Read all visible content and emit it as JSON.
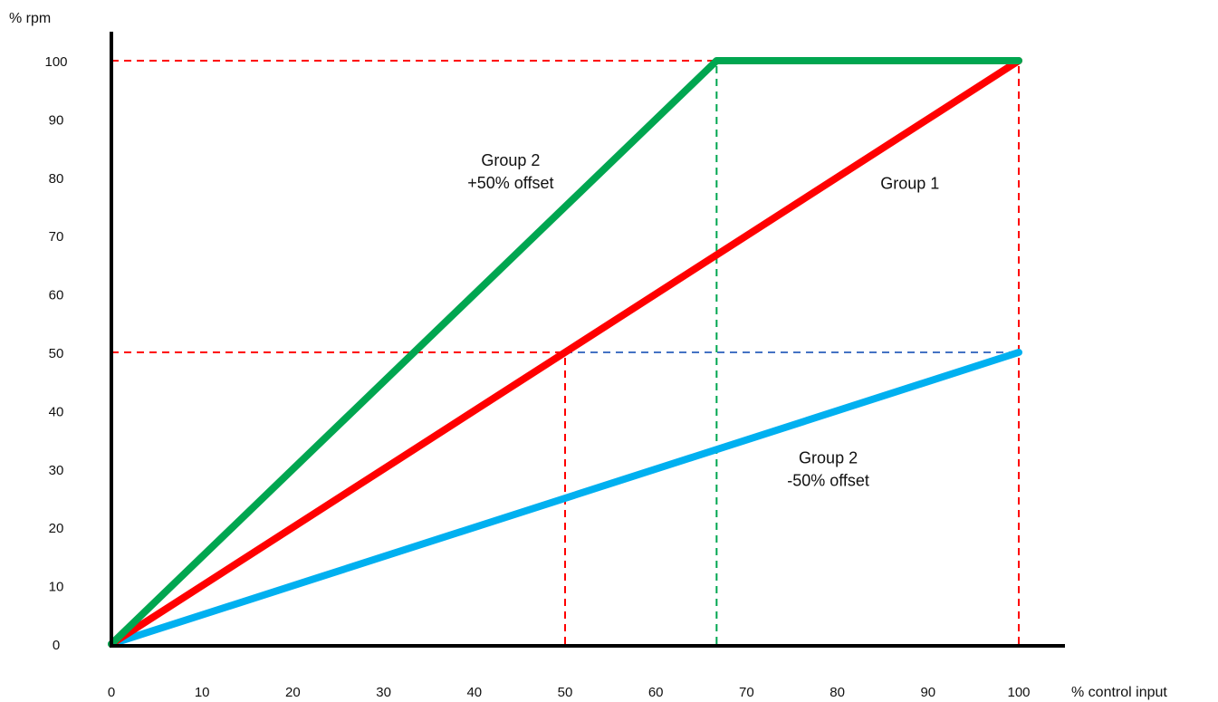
{
  "chart_data": {
    "type": "line",
    "xlabel": "% control input",
    "ylabel": "% rpm",
    "xlim": [
      0,
      100
    ],
    "ylim": [
      0,
      100
    ],
    "x_ticks": [
      "0",
      "10",
      "20",
      "30",
      "40",
      "50",
      "60",
      "70",
      "80",
      "90",
      "100"
    ],
    "y_ticks": [
      "0",
      "10",
      "20",
      "30",
      "40",
      "50",
      "60",
      "70",
      "80",
      "90",
      "100"
    ],
    "grid": false,
    "series": [
      {
        "color": "#00a650",
        "points": [
          [
            0,
            0
          ],
          [
            66.7,
            100
          ],
          [
            100,
            100
          ]
        ]
      },
      {
        "color": "#ff0000",
        "points": [
          [
            0,
            0
          ],
          [
            100,
            100
          ]
        ]
      },
      {
        "color": "#00b0f0",
        "points": [
          [
            0,
            0
          ],
          [
            100,
            50
          ]
        ]
      }
    ],
    "reference_lines": [
      {
        "color": "#ff0000",
        "points": [
          [
            0,
            100
          ],
          [
            66.7,
            100
          ]
        ]
      },
      {
        "color": "#ff0000",
        "points": [
          [
            0,
            50
          ],
          [
            50,
            50
          ]
        ]
      },
      {
        "color": "#4472c4",
        "points": [
          [
            50,
            50
          ],
          [
            100,
            50
          ]
        ]
      },
      {
        "color": "#ff0000",
        "points": [
          [
            50,
            0
          ],
          [
            50,
            50
          ]
        ]
      },
      {
        "color": "#00a650",
        "points": [
          [
            66.7,
            0
          ],
          [
            66.7,
            100
          ]
        ]
      },
      {
        "color": "#ff0000",
        "points": [
          [
            100,
            0
          ],
          [
            100,
            100
          ]
        ]
      }
    ],
    "annotations": [
      {
        "lines": [
          "Group 2",
          "+50% offset"
        ],
        "x": 44,
        "y": 82
      },
      {
        "lines": [
          "Group 1"
        ],
        "x": 88,
        "y": 78
      },
      {
        "lines": [
          "Group 2",
          "-50% offset"
        ],
        "x": 79,
        "y": 31
      }
    ]
  }
}
